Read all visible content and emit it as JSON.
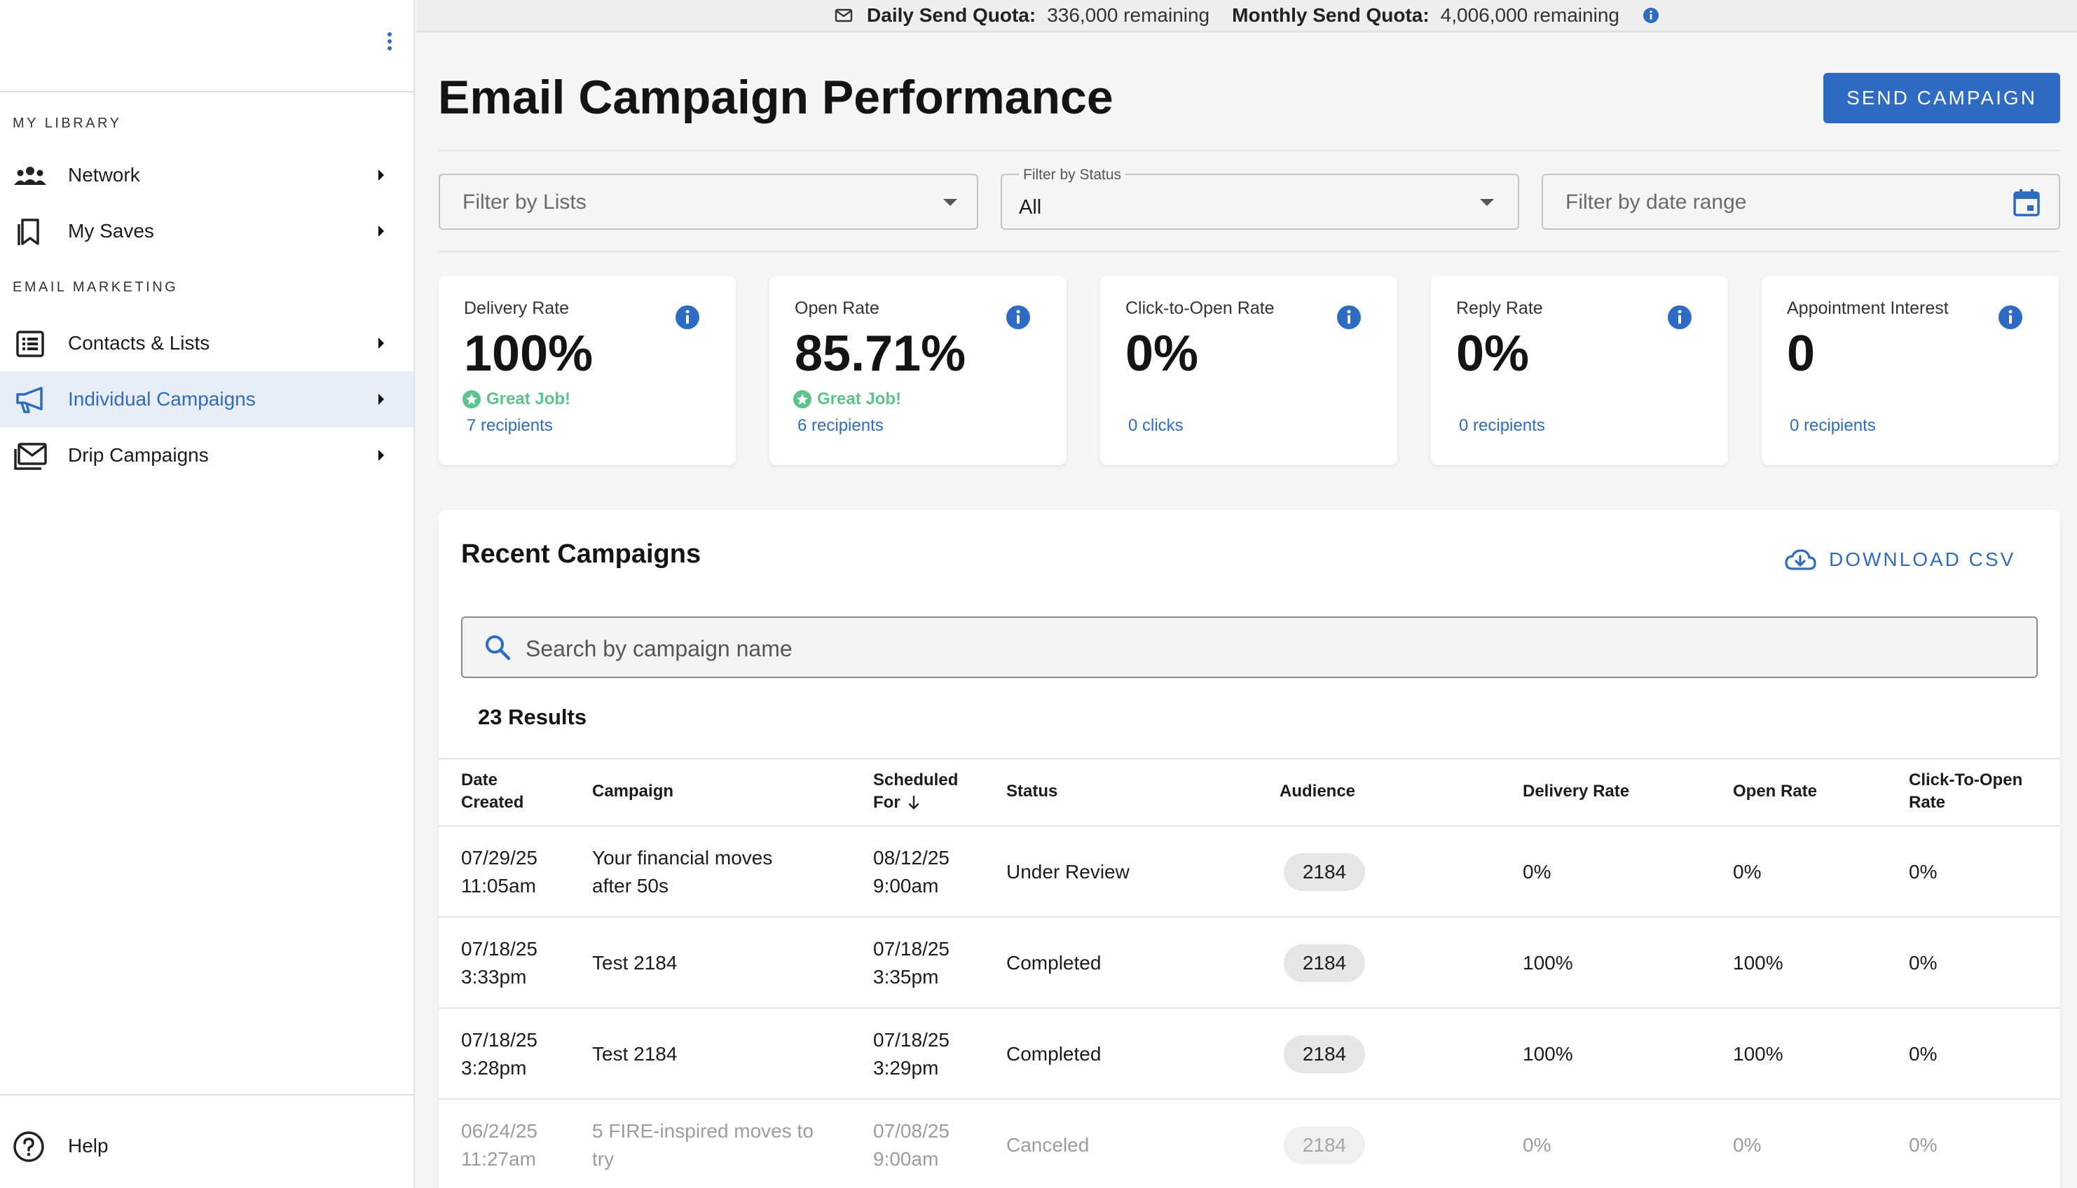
{
  "sidebar": {
    "sections": [
      {
        "header": "MY LIBRARY",
        "items": [
          {
            "label": "Network",
            "icon": "people-icon"
          },
          {
            "label": "My Saves",
            "icon": "bookmark-icon"
          }
        ]
      },
      {
        "header": "EMAIL MARKETING",
        "items": [
          {
            "label": "Contacts & Lists",
            "icon": "list-icon"
          },
          {
            "label": "Individual Campaigns",
            "icon": "megaphone-icon",
            "active": true
          },
          {
            "label": "Drip Campaigns",
            "icon": "mail-stack-icon"
          }
        ]
      }
    ],
    "help_label": "Help"
  },
  "quota": {
    "daily_label": "Daily Send Quota:",
    "daily_value": "336,000 remaining",
    "monthly_label": "Monthly Send Quota:",
    "monthly_value": "4,006,000 remaining"
  },
  "page_title": "Email Campaign Performance",
  "send_button": "SEND CAMPAIGN",
  "filters": {
    "lists_placeholder": "Filter by Lists",
    "status_label": "Filter by Status",
    "status_value": "All",
    "date_placeholder": "Filter by date range"
  },
  "cards": [
    {
      "title": "Delivery Rate",
      "value": "100%",
      "badge": "Great Job!",
      "sub": "7 recipients"
    },
    {
      "title": "Open Rate",
      "value": "85.71%",
      "badge": "Great Job!",
      "sub": "6 recipients"
    },
    {
      "title": "Click-to-Open Rate",
      "value": "0%",
      "badge": "",
      "sub": "0 clicks"
    },
    {
      "title": "Reply Rate",
      "value": "0%",
      "badge": "",
      "sub": "0 recipients"
    },
    {
      "title": "Appointment Interest",
      "value": "0",
      "badge": "",
      "sub": "0 recipients"
    }
  ],
  "recent": {
    "title": "Recent Campaigns",
    "download_label": "DOWNLOAD CSV",
    "search_placeholder": "Search by campaign name",
    "results": "23 Results",
    "columns": {
      "date_created_1": "Date",
      "date_created_2": "Created",
      "campaign": "Campaign",
      "scheduled_1": "Scheduled",
      "scheduled_2": "For",
      "status": "Status",
      "audience": "Audience",
      "delivery": "Delivery Rate",
      "open": "Open Rate",
      "cto_1": "Click-To-Open",
      "cto_2": "Rate"
    },
    "rows": [
      {
        "created_date": "07/29/25",
        "created_time": "11:05am",
        "campaign_1": "Your financial moves",
        "campaign_2": "after 50s",
        "sched_date": "08/12/25",
        "sched_time": "9:00am",
        "status": "Under Review",
        "audience": "2184",
        "delivery": "0%",
        "open": "0%",
        "cto": "0%"
      },
      {
        "created_date": "07/18/25",
        "created_time": "3:33pm",
        "campaign_1": "Test 2184",
        "campaign_2": "",
        "sched_date": "07/18/25",
        "sched_time": "3:35pm",
        "status": "Completed",
        "audience": "2184",
        "delivery": "100%",
        "open": "100%",
        "cto": "0%"
      },
      {
        "created_date": "07/18/25",
        "created_time": "3:28pm",
        "campaign_1": "Test 2184",
        "campaign_2": "",
        "sched_date": "07/18/25",
        "sched_time": "3:29pm",
        "status": "Completed",
        "audience": "2184",
        "delivery": "100%",
        "open": "100%",
        "cto": "0%"
      },
      {
        "created_date": "06/24/25",
        "created_time": "11:27am",
        "campaign_1": "5 FIRE-inspired moves to",
        "campaign_2": "try",
        "sched_date": "07/08/25",
        "sched_time": "9:00am",
        "status": "Canceled",
        "audience": "2184",
        "delivery": "0%",
        "open": "0%",
        "cto": "0%"
      }
    ]
  },
  "colors": {
    "accent": "#2e6cc4",
    "success": "#5cc38c",
    "active_bg": "#e9eef6"
  }
}
